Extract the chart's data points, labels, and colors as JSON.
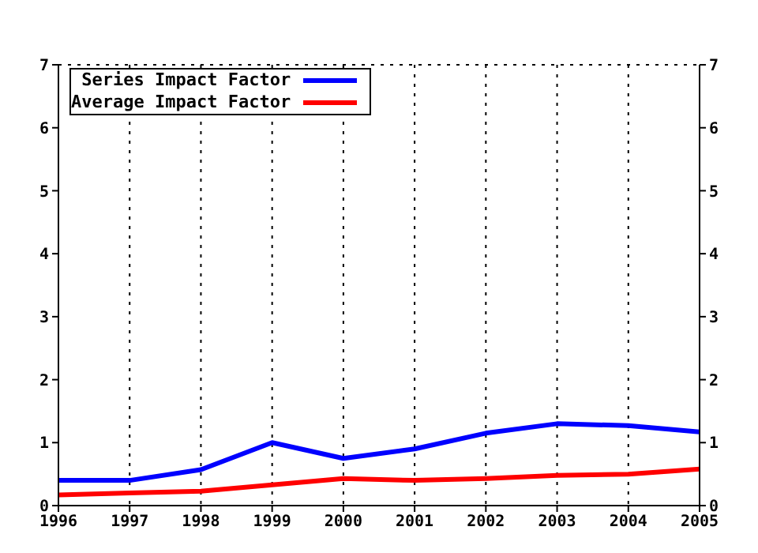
{
  "chart_data": {
    "type": "line",
    "x": [
      1996,
      1997,
      1998,
      1999,
      2000,
      2001,
      2002,
      2003,
      2004,
      2005
    ],
    "series": [
      {
        "name": "Series Impact Factor",
        "color": "#0000ff",
        "values": [
          0.4,
          0.4,
          0.57,
          1.0,
          0.75,
          0.9,
          1.15,
          1.3,
          1.27,
          1.17
        ]
      },
      {
        "name": "Average Impact Factor",
        "color": "#ff0000",
        "values": [
          0.17,
          0.2,
          0.23,
          0.33,
          0.43,
          0.4,
          0.43,
          0.48,
          0.5,
          0.58
        ]
      }
    ],
    "xlim": [
      1996,
      2005
    ],
    "xticks": [
      1996,
      1997,
      1998,
      1999,
      2000,
      2001,
      2002,
      2003,
      2004,
      2005
    ],
    "ylim": [
      0,
      7
    ],
    "yticks": [
      0,
      1,
      2,
      3,
      4,
      5,
      6,
      7
    ],
    "y2lim": [
      0,
      7
    ],
    "y2ticks": [
      0,
      1,
      2,
      3,
      4,
      5,
      6,
      7
    ],
    "grid": true,
    "legend": "top left",
    "marker": "none",
    "line_style": "solid"
  }
}
